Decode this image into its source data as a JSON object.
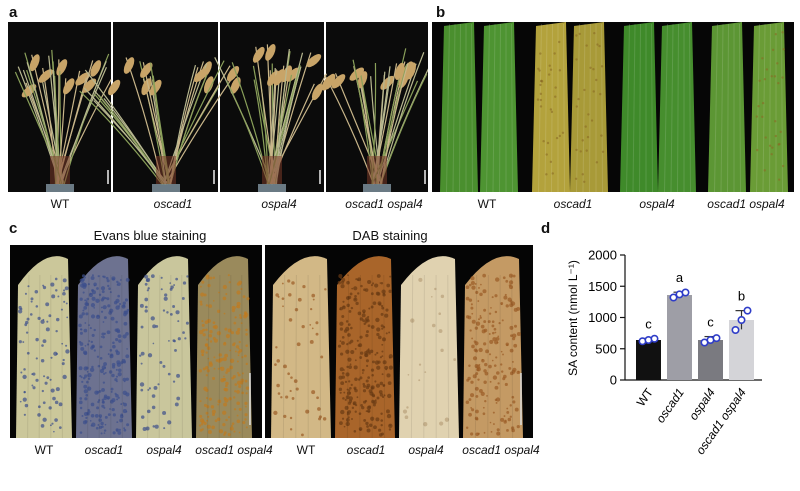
{
  "panels": {
    "a": {
      "label": "a",
      "genotypes": [
        "WT",
        "oscad1",
        "ospal4",
        "oscad1 ospal4"
      ]
    },
    "b": {
      "label": "b",
      "genotypes": [
        "WT",
        "oscad1",
        "ospal4",
        "oscad1 ospal4"
      ]
    },
    "c": {
      "label": "c",
      "titles": [
        "Evans blue staining",
        "DAB staining"
      ],
      "genotypes_left": [
        "WT",
        "oscad1",
        "ospal4",
        "oscad1 ospal4"
      ],
      "genotypes_right": [
        "WT",
        "oscad1",
        "ospal4",
        "oscad1 ospal4"
      ]
    },
    "d": {
      "label": "d"
    }
  },
  "colors": {
    "photo_bg": "#0a0a0a",
    "leaf_green": "#3f8a2a",
    "leaf_yellow": "#b8a23a",
    "evans_blue": "#3c4e8c",
    "dab_brown": "#9a5a24",
    "bar_wt": "#111111",
    "bar_oscad1": "#9e9ea6",
    "bar_ospal4": "#7a7a80",
    "bar_double": "#d4d4d8",
    "dot": "#2e3cc8"
  },
  "chart_data": {
    "type": "bar",
    "categories": [
      "WT",
      "oscad1",
      "ospal4",
      "oscad1 ospal4"
    ],
    "values": [
      640,
      1360,
      640,
      960
    ],
    "errors": [
      25,
      45,
      55,
      150
    ],
    "points": [
      [
        620,
        640,
        660
      ],
      [
        1320,
        1370,
        1400
      ],
      [
        600,
        640,
        670
      ],
      [
        800,
        960,
        1110
      ]
    ],
    "letters": [
      "c",
      "a",
      "c",
      "b"
    ],
    "ylabel": "SA content (nmol L⁻¹)",
    "yticks": [
      0,
      500,
      1000,
      1500,
      2000
    ],
    "ylim": [
      0,
      2000
    ],
    "grid": false,
    "legend": "none"
  }
}
